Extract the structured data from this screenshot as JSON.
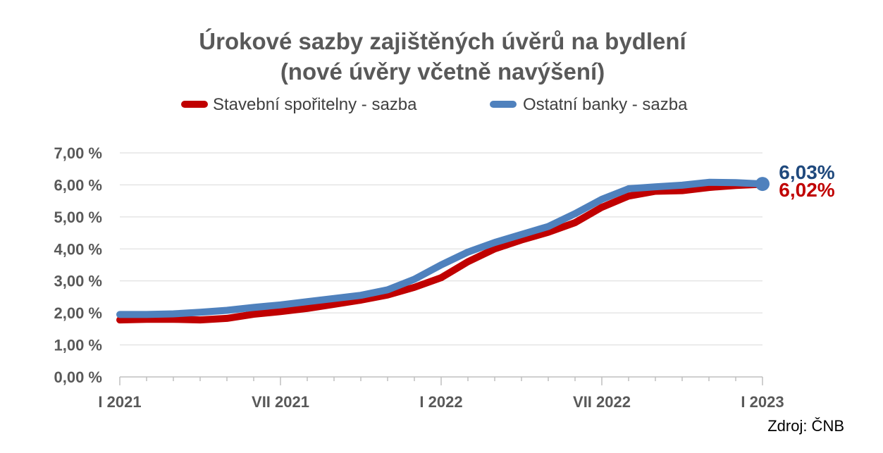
{
  "chart_data": {
    "type": "line",
    "title": "Úrokové sazby zajištěných úvěrů na bydlení",
    "subtitle": "(nové úvěry včetně navýšení)",
    "legend_placement": "top",
    "grid": true,
    "ylim": [
      0,
      7
    ],
    "yticks": [
      0,
      1,
      2,
      3,
      4,
      5,
      6,
      7
    ],
    "ytick_labels": [
      "0,00 %",
      "1,00 %",
      "2,00 %",
      "3,00 %",
      "4,00 %",
      "5,00 %",
      "6,00 %",
      "7,00 %"
    ],
    "x": [
      "I 2021",
      "II 2021",
      "III 2021",
      "IV 2021",
      "V 2021",
      "VI 2021",
      "VII 2021",
      "VIII 2021",
      "IX 2021",
      "X 2021",
      "XI 2021",
      "XII 2021",
      "I 2022",
      "II 2022",
      "III 2022",
      "IV 2022",
      "V 2022",
      "VI 2022",
      "VII 2022",
      "VIII 2022",
      "IX 2022",
      "X 2022",
      "XI 2022",
      "XII 2022",
      "I 2023"
    ],
    "xtick_labels": [
      {
        "index": 0,
        "label": "I 2021"
      },
      {
        "index": 6,
        "label": "VII 2021"
      },
      {
        "index": 12,
        "label": "I 2022"
      },
      {
        "index": 18,
        "label": "VII 2022"
      },
      {
        "index": 24,
        "label": "I 2023"
      }
    ],
    "series": [
      {
        "name": "Stavební spořitelny - sazba",
        "color": "#c00000",
        "values": [
          1.78,
          1.8,
          1.8,
          1.78,
          1.83,
          1.96,
          2.04,
          2.14,
          2.27,
          2.4,
          2.56,
          2.8,
          3.1,
          3.6,
          4.0,
          4.28,
          4.52,
          4.82,
          5.3,
          5.65,
          5.8,
          5.82,
          5.92,
          5.98,
          6.02
        ],
        "end_label": "6,02%",
        "end_label_color": "#c00000"
      },
      {
        "name": "Ostatní banky - sazba",
        "color": "#4f81bd",
        "values": [
          1.95,
          1.95,
          1.97,
          2.02,
          2.08,
          2.17,
          2.25,
          2.35,
          2.45,
          2.55,
          2.72,
          3.05,
          3.5,
          3.9,
          4.2,
          4.45,
          4.7,
          5.1,
          5.55,
          5.88,
          5.94,
          5.99,
          6.08,
          6.07,
          6.03
        ],
        "end_label": "6,03%",
        "end_label_color": "#1f497d"
      }
    ],
    "source": "Zdroj: ČNB"
  }
}
